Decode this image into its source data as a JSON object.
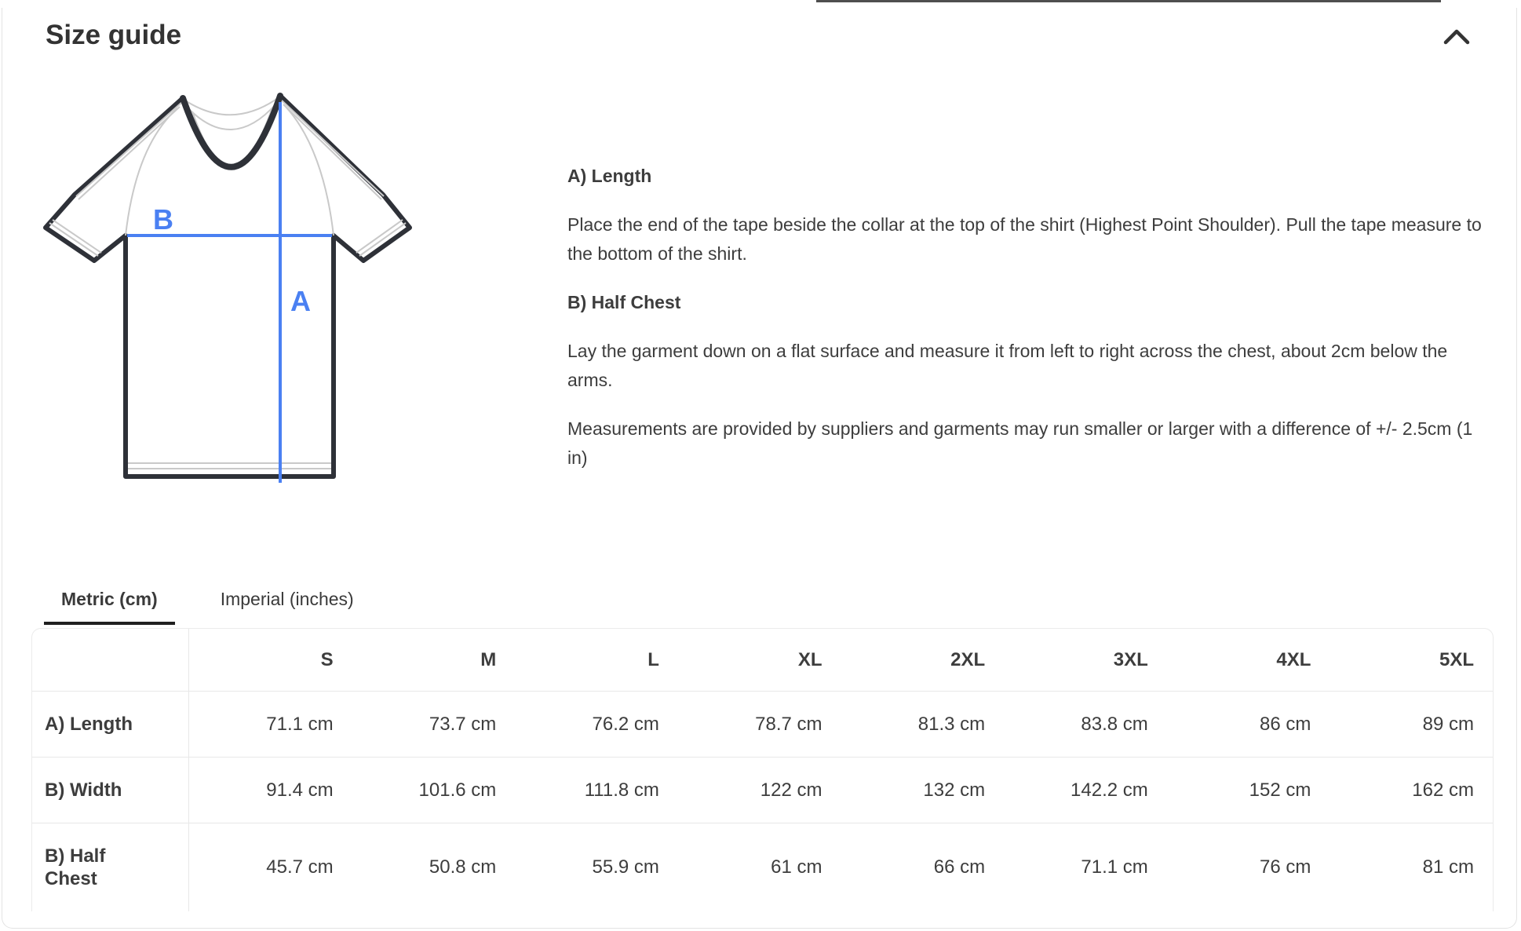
{
  "header": {
    "title": "Size guide"
  },
  "diagram": {
    "label_length": "A",
    "label_chest": "B"
  },
  "instructions": [
    {
      "heading": "A) Length",
      "body": "Place the end of the tape beside the collar at the top of the shirt (Highest Point Shoulder). Pull the tape measure to the bottom of the shirt."
    },
    {
      "heading": "B) Half Chest",
      "body": "Lay the garment down on a flat surface and measure it from left to right across the chest, about 2cm below the arms."
    }
  ],
  "note": "Measurements are provided by suppliers and garments may run smaller or larger with a difference of +/- 2.5cm (1 in)",
  "tabs": [
    {
      "label": "Metric (cm)",
      "active": true
    },
    {
      "label": "Imperial (inches)",
      "active": false
    }
  ],
  "table": {
    "columns": [
      "S",
      "M",
      "L",
      "XL",
      "2XL",
      "3XL",
      "4XL",
      "5XL"
    ],
    "rows": [
      {
        "label": "A) Length",
        "values": [
          "71.1 cm",
          "73.7 cm",
          "76.2 cm",
          "78.7 cm",
          "81.3 cm",
          "83.8 cm",
          "86 cm",
          "89 cm"
        ]
      },
      {
        "label": "B) Width",
        "values": [
          "91.4 cm",
          "101.6 cm",
          "111.8 cm",
          "122 cm",
          "132 cm",
          "142.2 cm",
          "152 cm",
          "162 cm"
        ]
      },
      {
        "label": "B) Half Chest",
        "values": [
          "45.7 cm",
          "50.8 cm",
          "55.9 cm",
          "61 cm",
          "66 cm",
          "71.1 cm",
          "76 cm",
          "81 cm"
        ]
      }
    ]
  },
  "colors": {
    "accent_blue": "#4a80f2",
    "tab_underline": "#1f1f1f",
    "shirt_outline": "#2e3138"
  }
}
